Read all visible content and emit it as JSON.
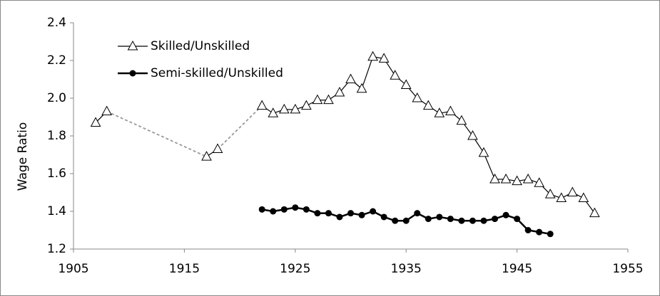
{
  "chart_data": {
    "type": "line",
    "y_label": "Wage Ratio",
    "xlim": [
      1905,
      1955
    ],
    "xticks": [
      1905,
      1915,
      1925,
      1935,
      1945,
      1955
    ],
    "ylim": [
      1.2,
      2.4
    ],
    "yticks": [
      1.2,
      1.4,
      1.6,
      1.8,
      {
        "value": 2,
        "label": "2.0"
      },
      2.2,
      2.4
    ],
    "legend": "upper left",
    "series": [
      {
        "name": "Skilled/Unskilled",
        "color": "#000000",
        "marker": "triangle",
        "x": [
          1907,
          1908,
          1917,
          1918,
          1922,
          1923,
          1924,
          1925,
          1926,
          1927,
          1928,
          1929,
          1930,
          1931,
          1932,
          1933,
          1934,
          1935,
          1936,
          1937,
          1938,
          1939,
          1940,
          1941,
          1942,
          1943,
          1944,
          1945,
          1946,
          1947,
          1948,
          1949,
          1950,
          1951,
          1952
        ],
        "values": [
          1.87,
          1.93,
          1.69,
          1.73,
          1.96,
          1.92,
          1.94,
          1.94,
          1.96,
          1.99,
          1.99,
          2.03,
          2.1,
          2.05,
          2.22,
          2.21,
          2.12,
          2.07,
          2.0,
          1.96,
          1.92,
          1.93,
          1.88,
          1.8,
          1.71,
          1.57,
          1.57,
          1.56,
          1.57,
          1.55,
          1.49,
          1.47,
          1.5,
          1.47,
          1.39
        ]
      },
      {
        "name": "Semi-skilled/Unskilled",
        "color": "#000000",
        "marker": "circle",
        "x": [
          1922,
          1923,
          1924,
          1925,
          1926,
          1927,
          1928,
          1929,
          1930,
          1931,
          1932,
          1933,
          1934,
          1935,
          1936,
          1937,
          1938,
          1939,
          1940,
          1941,
          1942,
          1943,
          1944,
          1945,
          1946,
          1947,
          1948
        ],
        "values": [
          1.41,
          1.4,
          1.41,
          1.42,
          1.41,
          1.39,
          1.39,
          1.37,
          1.39,
          1.38,
          1.4,
          1.37,
          1.35,
          1.35,
          1.39,
          1.36,
          1.37,
          1.36,
          1.35,
          1.35,
          1.35,
          1.36,
          1.38,
          1.36,
          1.3,
          1.29,
          1.28
        ]
      }
    ]
  }
}
